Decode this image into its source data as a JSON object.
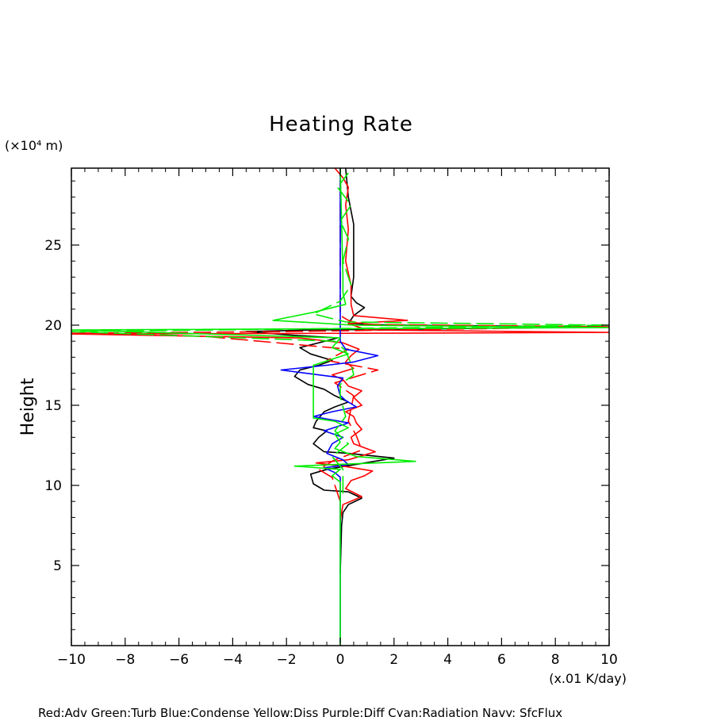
{
  "chart_data": {
    "type": "line",
    "title": "Heating Rate",
    "ylabel": "Height",
    "yunit": "(×10⁴ m)",
    "xunit": "(x.01 K/day)",
    "legend": "Red:Adv  Green:Turb  Blue:Condense  Yellow:Diss  Purple:Diff  Cyan:Radiation  Navy: SfcFlux",
    "xlim": [
      -10,
      10
    ],
    "ylim": [
      0,
      29.8
    ],
    "xticks": [
      -10,
      -8,
      -6,
      -4,
      -2,
      0,
      2,
      4,
      6,
      8,
      10
    ],
    "yticks": [
      5,
      10,
      15,
      20,
      25
    ],
    "grid": false,
    "colors": {
      "black": "#000000",
      "red": "#ff0000",
      "green": "#00ee00",
      "blue": "#0000ff"
    },
    "series": [
      {
        "color": "black",
        "dash": false,
        "points": [
          [
            0,
            4.5
          ],
          [
            0.05,
            7.5
          ],
          [
            0.1,
            8.3
          ],
          [
            0.3,
            8.8
          ],
          [
            0.8,
            9.2
          ],
          [
            0.3,
            9.6
          ],
          [
            -0.6,
            9.7
          ],
          [
            -1,
            10.1
          ],
          [
            -1.1,
            10.7
          ],
          [
            -0.5,
            11.0
          ],
          [
            0.2,
            11.2
          ],
          [
            2,
            11.7
          ],
          [
            0.3,
            12.0
          ],
          [
            -0.6,
            12.1
          ],
          [
            -1,
            12.6
          ],
          [
            -0.8,
            13.0
          ],
          [
            -0.5,
            13.4
          ],
          [
            -1,
            13.6
          ],
          [
            -0.9,
            14.0
          ],
          [
            -0.6,
            14.6
          ],
          [
            -0.2,
            14.9
          ],
          [
            0.3,
            15.2
          ],
          [
            -0.2,
            15.6
          ],
          [
            -0.6,
            16.0
          ],
          [
            -1.2,
            16.3
          ],
          [
            -1.7,
            16.8
          ],
          [
            -1.5,
            17.2
          ],
          [
            -0.8,
            17.5
          ],
          [
            -0.3,
            17.8
          ],
          [
            -1.1,
            18.2
          ],
          [
            -1.5,
            18.6
          ],
          [
            -0.8,
            18.9
          ],
          [
            -0.1,
            19.2
          ],
          [
            -2,
            19.4
          ],
          [
            -3.5,
            19.6
          ],
          [
            -1,
            19.7
          ],
          [
            3,
            19.75
          ],
          [
            9.5,
            19.9
          ],
          [
            2,
            20.0
          ],
          [
            0.3,
            20.1
          ],
          [
            0.5,
            20.6
          ],
          [
            0.9,
            21.1
          ],
          [
            0.6,
            21.4
          ],
          [
            0.4,
            21.8
          ],
          [
            0.5,
            23.0
          ],
          [
            0.5,
            24.5
          ],
          [
            0.5,
            26.3
          ],
          [
            0.3,
            28.0
          ],
          [
            0.2,
            29.8
          ]
        ]
      },
      {
        "color": "red",
        "dash": false,
        "points": [
          [
            0,
            7.8
          ],
          [
            0.1,
            8.8
          ],
          [
            0.8,
            9.3
          ],
          [
            0.2,
            9.8
          ],
          [
            0.4,
            10.3
          ],
          [
            0.9,
            10.6
          ],
          [
            1.2,
            10.9
          ],
          [
            0.1,
            11.2
          ],
          [
            -0.9,
            11.4
          ],
          [
            0.3,
            11.6
          ],
          [
            1.3,
            12.1
          ],
          [
            0.5,
            12.6
          ],
          [
            0.4,
            13.0
          ],
          [
            0.8,
            13.5
          ],
          [
            0.6,
            13.9
          ],
          [
            0.5,
            14.3
          ],
          [
            0.2,
            14.6
          ],
          [
            0.8,
            15.0
          ],
          [
            0.5,
            15.5
          ],
          [
            0.8,
            15.9
          ],
          [
            0.3,
            16.2
          ],
          [
            0.1,
            16.6
          ],
          [
            -0.3,
            16.9
          ],
          [
            0.5,
            17.3
          ],
          [
            0.2,
            17.7
          ],
          [
            0.4,
            18.1
          ],
          [
            0.7,
            18.5
          ],
          [
            0.1,
            18.9
          ],
          [
            -1.5,
            19.2
          ],
          [
            -10,
            19.45
          ],
          [
            2,
            19.5
          ],
          [
            10,
            19.55
          ],
          [
            1,
            19.7
          ],
          [
            0.3,
            20.1
          ],
          [
            2.5,
            20.3
          ],
          [
            0.5,
            20.6
          ],
          [
            0.4,
            21.3
          ],
          [
            0.4,
            22.5
          ],
          [
            0.2,
            24
          ],
          [
            0.3,
            26
          ],
          [
            0.2,
            27.5
          ],
          [
            0.3,
            28.6
          ],
          [
            0.1,
            29.2
          ],
          [
            -0.2,
            29.8
          ]
        ]
      },
      {
        "color": "red",
        "dash": true,
        "points": [
          [
            0,
            9.0
          ],
          [
            -0.3,
            10.5
          ],
          [
            -0.8,
            11.0
          ],
          [
            -0.2,
            11.6
          ],
          [
            0.8,
            12.2
          ],
          [
            0.6,
            13.1
          ],
          [
            0.3,
            14.0
          ],
          [
            0.4,
            14.8
          ],
          [
            0.5,
            15.6
          ],
          [
            -0.2,
            16.4
          ],
          [
            1.4,
            17.2
          ],
          [
            -0.5,
            17.8
          ],
          [
            0.3,
            18.5
          ],
          [
            -5,
            19.3
          ],
          [
            -10,
            19.5
          ],
          [
            -2,
            19.6
          ],
          [
            6,
            19.8
          ],
          [
            10,
            19.9
          ],
          [
            0.8,
            20.05
          ],
          [
            0.3,
            20.3
          ],
          [
            0,
            20.6
          ],
          [
            0,
            29.8
          ]
        ]
      },
      {
        "color": "blue",
        "dash": false,
        "points": [
          [
            0,
            0.2
          ],
          [
            0,
            10.5
          ],
          [
            -0.2,
            10.8
          ],
          [
            -0.6,
            11.1
          ],
          [
            0.3,
            11.3
          ],
          [
            0.1,
            11.6
          ],
          [
            -0.5,
            12.0
          ],
          [
            -0.3,
            12.6
          ],
          [
            0.1,
            13.0
          ],
          [
            -0.6,
            13.4
          ],
          [
            0.3,
            13.9
          ],
          [
            -1,
            14.3
          ],
          [
            -0.3,
            14.6
          ],
          [
            0.6,
            14.9
          ],
          [
            0.2,
            15.3
          ],
          [
            0,
            15.6
          ],
          [
            -0.1,
            16.2
          ],
          [
            0.1,
            16.7
          ],
          [
            -2.2,
            17.2
          ],
          [
            -0.5,
            17.5
          ],
          [
            0.5,
            17.7
          ],
          [
            1.4,
            18.1
          ],
          [
            0.2,
            18.5
          ],
          [
            0,
            19
          ],
          [
            0,
            29.8
          ]
        ]
      },
      {
        "color": "green",
        "dash": false,
        "points": [
          [
            0,
            0
          ],
          [
            0,
            10.2
          ],
          [
            -0.3,
            10.6
          ],
          [
            0,
            11.0
          ],
          [
            -1.7,
            11.2
          ],
          [
            2.8,
            11.5
          ],
          [
            0.6,
            11.8
          ],
          [
            -0.2,
            12.3
          ],
          [
            0,
            12.7
          ],
          [
            -0.2,
            13.2
          ],
          [
            0.3,
            13.6
          ],
          [
            -0.2,
            14.0
          ],
          [
            -1,
            14.2
          ],
          [
            -1,
            17.5
          ],
          [
            0.3,
            18.2
          ],
          [
            -0.3,
            18.6
          ],
          [
            0,
            19.2
          ],
          [
            -10,
            19.7
          ],
          [
            10,
            19.85
          ],
          [
            0.5,
            20.0
          ],
          [
            -2.5,
            20.3
          ],
          [
            -1,
            20.8
          ],
          [
            0.2,
            21.3
          ],
          [
            0.1,
            22.0
          ],
          [
            0.1,
            23.0
          ],
          [
            0,
            29.8
          ]
        ]
      },
      {
        "color": "green",
        "dash": true,
        "points": [
          [
            0.1,
            9.5
          ],
          [
            0.1,
            11
          ],
          [
            -0.3,
            11.8
          ],
          [
            0.3,
            12.6
          ],
          [
            -0.2,
            13.4
          ],
          [
            0.2,
            14.3
          ],
          [
            0,
            15.5
          ],
          [
            0,
            16.3
          ],
          [
            0.5,
            16.9
          ],
          [
            0.4,
            17.6
          ],
          [
            0.2,
            18.4
          ],
          [
            -0.2,
            19.0
          ],
          [
            -10,
            19.6
          ],
          [
            3,
            19.85
          ],
          [
            10,
            20.0
          ],
          [
            0.2,
            20.2
          ],
          [
            -1,
            20.7
          ],
          [
            0,
            21.5
          ],
          [
            0.4,
            22.5
          ],
          [
            0.1,
            24
          ],
          [
            0.3,
            25.4
          ],
          [
            0,
            26.5
          ],
          [
            0.4,
            27.5
          ],
          [
            -0.1,
            28.6
          ],
          [
            0.3,
            29.5
          ]
        ]
      }
    ]
  }
}
